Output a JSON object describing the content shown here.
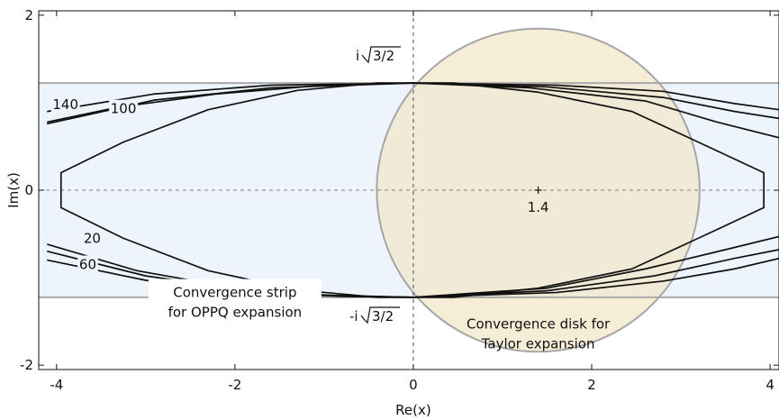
{
  "chart_data": {
    "type": "line",
    "title": "",
    "xlabel": "Re(x)",
    "ylabel": "Im(x)",
    "xlim": [
      -4.2,
      4.1
    ],
    "ylim": [
      -2.05,
      2.05
    ],
    "x_ticks": [
      {
        "value": -4,
        "label": "-4"
      },
      {
        "value": -2,
        "label": "-2"
      },
      {
        "value": 0,
        "label": "0"
      },
      {
        "value": 2,
        "label": "2"
      },
      {
        "value": 4,
        "label": "4"
      }
    ],
    "y_ticks": [
      {
        "value": -2,
        "label": "-2"
      },
      {
        "value": 0,
        "label": "0"
      },
      {
        "value": 2,
        "label": "2"
      }
    ],
    "grid": false,
    "strip": {
      "half_width": 1.2247,
      "fill_color": "#eef4fc",
      "edge_color": "#a9a9a9",
      "label_lines": [
        "Convergence strip",
        "for OPPQ expansion"
      ]
    },
    "disk": {
      "center": [
        1.4,
        0
      ],
      "radius": 1.81,
      "fill_color": "#f3e6c8",
      "edge_color": "#a6a6a6",
      "center_label": "1.4",
      "label_lines": [
        "Convergence disk for",
        "Taylor expansion"
      ]
    },
    "strip_edge_labels": {
      "top": {
        "prefix": "i",
        "radicand": "3/2"
      },
      "bottom": {
        "prefix": "-i",
        "radicand": "3/2"
      }
    },
    "series": [
      {
        "name": "20",
        "label_anchor": [
          -3.6,
          -0.55
        ],
        "points": [
          [
            -3.95,
            0.2
          ],
          [
            -3.25,
            0.55
          ],
          [
            -2.3,
            0.92
          ],
          [
            -1.3,
            1.14
          ],
          [
            -0.4,
            1.2247
          ],
          [
            0.45,
            1.2247
          ],
          [
            1.4,
            1.12
          ],
          [
            2.45,
            0.9
          ],
          [
            3.3,
            0.5
          ],
          [
            3.93,
            0.2
          ],
          [
            3.93,
            -0.2
          ],
          [
            3.3,
            -0.5
          ],
          [
            2.45,
            -0.9
          ],
          [
            1.4,
            -1.12
          ],
          [
            0.45,
            -1.2247
          ],
          [
            -0.4,
            -1.2247
          ],
          [
            -1.3,
            -1.14
          ],
          [
            -2.3,
            -0.92
          ],
          [
            -3.25,
            -0.55
          ],
          [
            -3.95,
            -0.2
          ],
          [
            -3.95,
            0.2
          ]
        ]
      },
      {
        "name": "60",
        "label_anchor": [
          -3.65,
          -0.85
        ],
        "segments": [
          [
            [
              -4.1,
              -0.62
            ],
            [
              -3.1,
              -0.92
            ],
            [
              -2.0,
              -1.12
            ],
            [
              -1.0,
              -1.2
            ],
            [
              0.0,
              -1.2247
            ]
          ],
          [
            [
              0.0,
              -1.2247
            ],
            [
              1.5,
              -1.12
            ],
            [
              2.6,
              -0.9
            ],
            [
              3.5,
              -0.68
            ],
            [
              4.1,
              -0.53
            ]
          ],
          [
            [
              -4.1,
              0.78
            ],
            [
              -3.3,
              0.95
            ],
            [
              -2.2,
              1.1
            ],
            [
              -1.0,
              1.2
            ],
            [
              0.0,
              1.2247
            ]
          ],
          [
            [
              0.0,
              1.2247
            ],
            [
              1.3,
              1.17
            ],
            [
              2.6,
              1.02
            ],
            [
              3.4,
              0.78
            ],
            [
              4.1,
              0.6
            ]
          ]
        ]
      },
      {
        "name": "100",
        "label_anchor": [
          -3.25,
          0.93
        ],
        "segments": [
          [
            [
              -4.1,
              -0.7
            ],
            [
              -3.0,
              -0.98
            ],
            [
              -1.9,
              -1.14
            ],
            [
              -0.8,
              -1.21
            ],
            [
              0.0,
              -1.2247
            ]
          ],
          [
            [
              0.0,
              -1.2247
            ],
            [
              1.5,
              -1.15
            ],
            [
              2.7,
              -0.98
            ],
            [
              3.6,
              -0.78
            ],
            [
              4.1,
              -0.68
            ]
          ],
          [
            [
              -4.1,
              0.76
            ],
            [
              -2.9,
              1.03
            ],
            [
              -1.6,
              1.17
            ],
            [
              0.0,
              1.2247
            ]
          ],
          [
            [
              0.0,
              1.2247
            ],
            [
              1.5,
              1.18
            ],
            [
              2.8,
              1.06
            ],
            [
              3.6,
              0.9
            ],
            [
              4.1,
              0.82
            ]
          ]
        ]
      },
      {
        "name": "140",
        "label_anchor": [
          -3.9,
          0.98
        ],
        "segments": [
          [
            [
              -4.1,
              -0.8
            ],
            [
              -3.0,
              -1.03
            ],
            [
              -1.9,
              -1.16
            ],
            [
              -0.8,
              -1.215
            ],
            [
              0.0,
              -1.2247
            ]
          ],
          [
            [
              0.0,
              -1.2247
            ],
            [
              1.6,
              -1.17
            ],
            [
              2.8,
              -1.04
            ],
            [
              3.6,
              -0.9
            ],
            [
              4.1,
              -0.78
            ]
          ],
          [
            [
              -4.1,
              0.9
            ],
            [
              -2.9,
              1.1
            ],
            [
              -1.6,
              1.2
            ],
            [
              0.0,
              1.2247
            ]
          ],
          [
            [
              0.0,
              1.2247
            ],
            [
              1.6,
              1.2
            ],
            [
              2.8,
              1.13
            ],
            [
              3.6,
              0.99
            ],
            [
              4.1,
              0.92
            ]
          ]
        ]
      }
    ]
  }
}
